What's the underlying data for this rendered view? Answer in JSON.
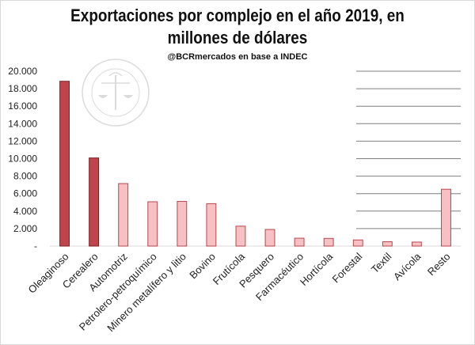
{
  "chart_data": {
    "type": "bar",
    "title": "Exportaciones por complejo en el año 2019, en\nmillones de dólares",
    "subtitle": "@BCRmercados en base a INDEC",
    "categories": [
      "Oleaginoso",
      "Cerealero",
      "Automotriz",
      "Petrolero-petroquímico",
      "Minero metalífero y litio",
      "Bovino",
      "Frutícola",
      "Pesquero",
      "Farmacéutico",
      "Hortícola",
      "Forestal",
      "Textil",
      "Avícola",
      "Resto"
    ],
    "values": [
      18850,
      10080,
      7150,
      5070,
      5110,
      4850,
      2280,
      1900,
      900,
      880,
      700,
      500,
      460,
      6500
    ],
    "highlighted": [
      true,
      true,
      false,
      false,
      false,
      false,
      false,
      false,
      false,
      false,
      false,
      false,
      false,
      false
    ],
    "ylim": [
      0,
      20000
    ],
    "yticks": [
      0,
      2000,
      4000,
      6000,
      8000,
      10000,
      12000,
      14000,
      16000,
      18000,
      20000
    ],
    "ytick_labels": [
      "-",
      "2.000",
      "4.000",
      "6.000",
      "8.000",
      "10.000",
      "12.000",
      "14.000",
      "16.000",
      "18.000",
      "20.000"
    ],
    "grid": true,
    "xlabel": "",
    "ylabel": "",
    "colors": {
      "highlight_fill": "#c0444b",
      "highlight_stroke": "#7a1f24",
      "normal_fill": "#f7c1c4",
      "normal_stroke": "#b5474e",
      "grid": "#7f7f7f"
    },
    "watermark": {
      "text_top": "BOLSA DE COMERCIO DE ROSARIO"
    }
  }
}
